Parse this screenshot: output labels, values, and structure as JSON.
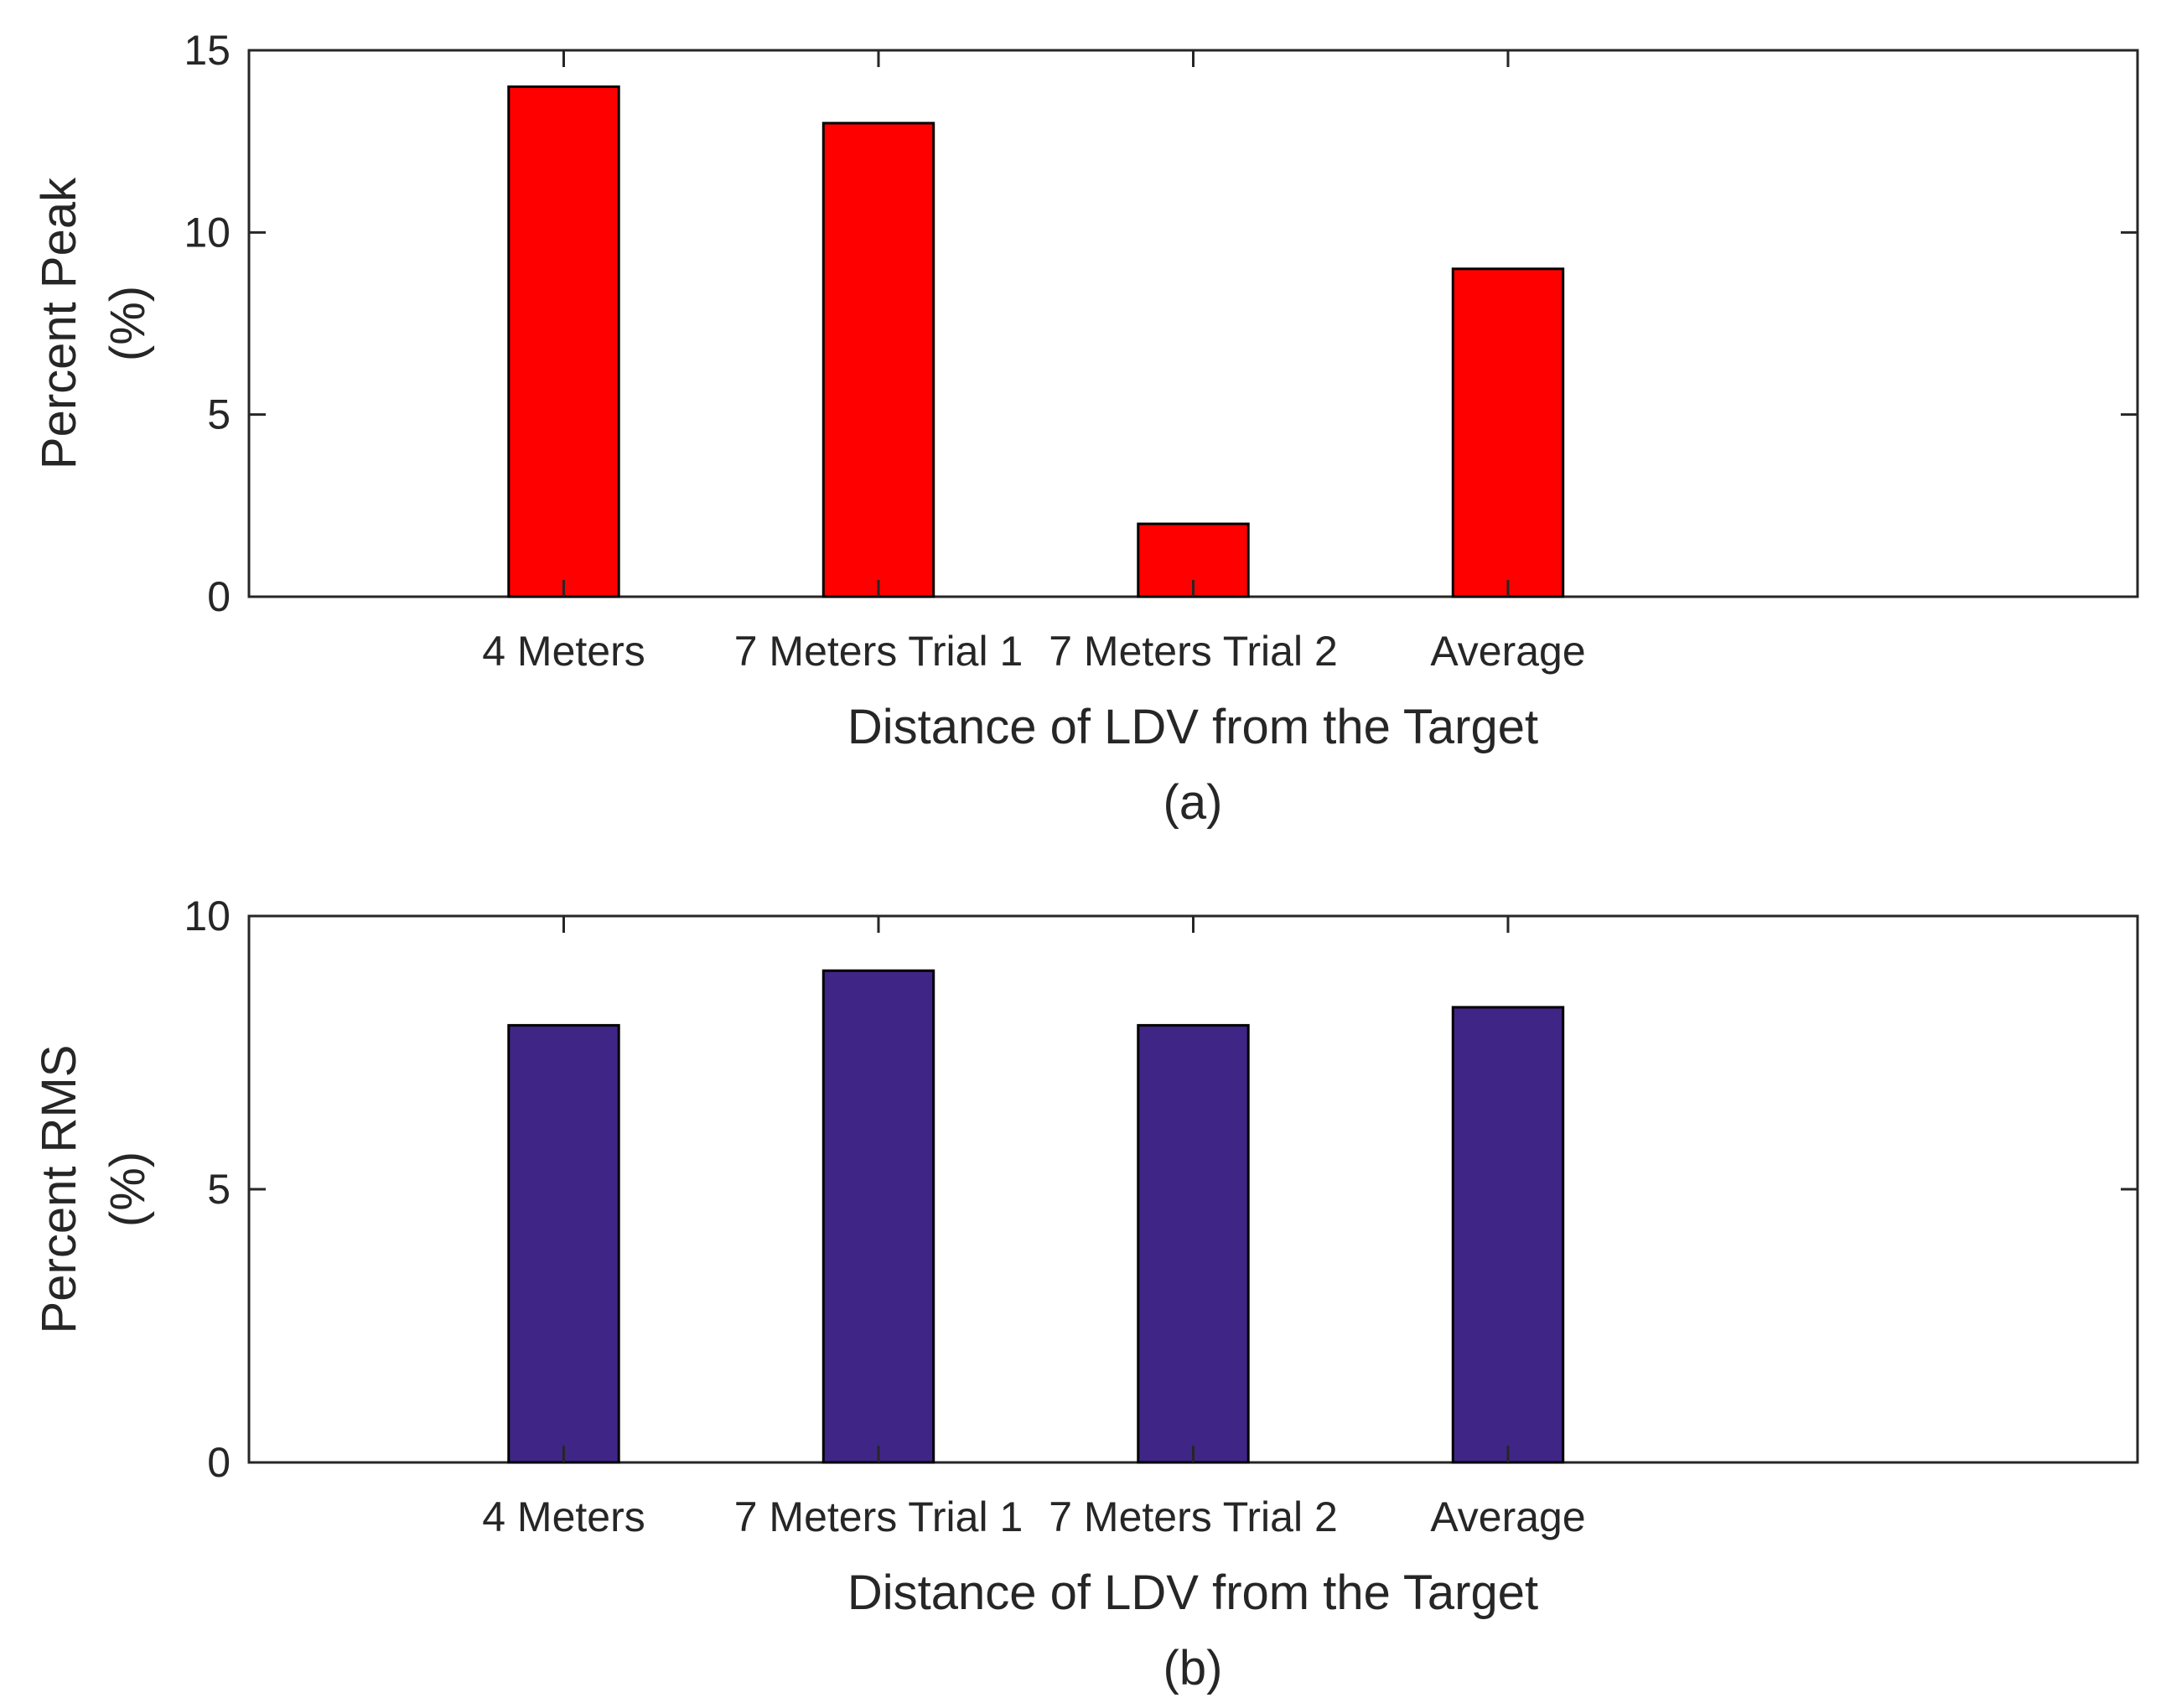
{
  "chart_data": [
    {
      "type": "bar",
      "panel_label": "(a)",
      "categories": [
        "4 Meters",
        "7 Meters Trial 1",
        "7 Meters Trial 2",
        "Average"
      ],
      "values": [
        14,
        13,
        2,
        9
      ],
      "color": "#ff0000",
      "title": "",
      "xlabel": "Distance of LDV from the Target",
      "ylabel_line1": "Percent Peak",
      "ylabel_line2": "(%)",
      "ylim": [
        0,
        15
      ],
      "yticks": [
        0,
        5,
        10,
        15
      ],
      "ytick_labels": [
        "0",
        "5",
        "10",
        "15"
      ],
      "grid": false
    },
    {
      "type": "bar",
      "panel_label": "(b)",
      "categories": [
        "4 Meters",
        "7 Meters Trial 1",
        "7 Meters Trial 2",
        "Average"
      ],
      "values": [
        8,
        9,
        8,
        8.33
      ],
      "color": "#3f2586",
      "title": "",
      "xlabel": "Distance of LDV from the Target",
      "ylabel_line1": "Percent RMS",
      "ylabel_line2": "(%)",
      "ylim": [
        0,
        10
      ],
      "yticks": [
        0,
        5,
        10
      ],
      "ytick_labels": [
        "0",
        "5",
        "10"
      ],
      "grid": false
    }
  ]
}
